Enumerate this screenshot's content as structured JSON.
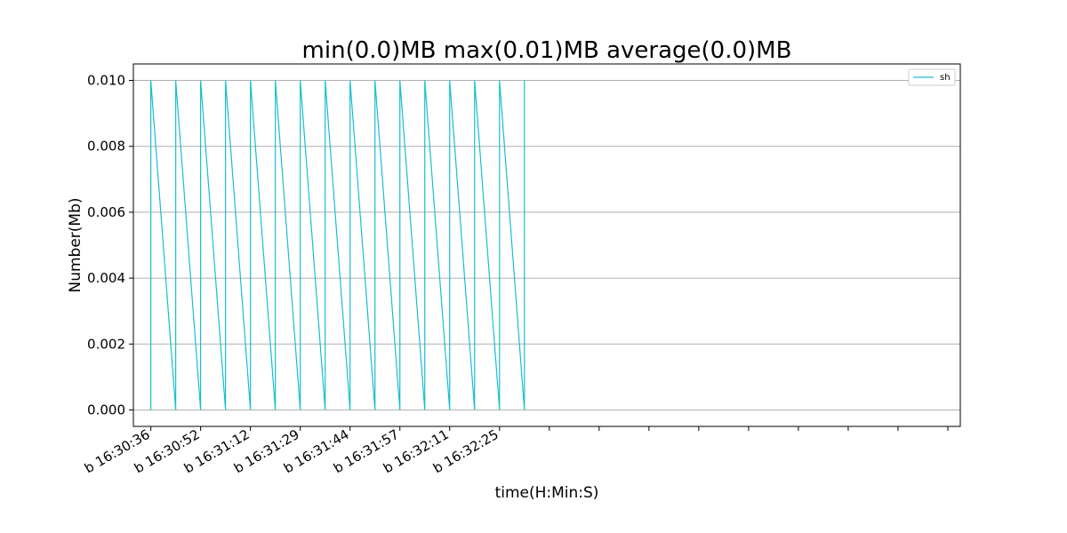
{
  "chart_data": {
    "type": "line",
    "title": "min(0.0)MB max(0.01)MB average(0.0)MB",
    "xlabel": "time(H:Min:S)",
    "ylabel": "Number(Mb)",
    "x_tick_labels": [
      "b 16:30:36",
      "b 16:30:52",
      "b 16:31:12",
      "b 16:31:29",
      "b 16:31:44",
      "b 16:31:57",
      "b 16:32:11",
      "b 16:32:25"
    ],
    "x_tick_count": 17,
    "y_ticks": [
      0.0,
      0.002,
      0.004,
      0.006,
      0.008,
      0.01
    ],
    "y_tick_labels": [
      "0.000",
      "0.002",
      "0.004",
      "0.006",
      "0.008",
      "0.010"
    ],
    "ylim": [
      -0.0005,
      0.0105
    ],
    "xlim": [
      -0.35,
      16.25
    ],
    "grid": "y",
    "legend_position": "top-right",
    "series": [
      {
        "name": "sh",
        "color": "#17becf",
        "x": [
          0,
          0,
          0.5,
          0.5,
          1,
          1,
          1.5,
          1.5,
          2,
          2,
          2.5,
          2.5,
          3,
          3,
          3.5,
          3.5,
          4,
          4,
          4.5,
          4.5,
          5,
          5,
          5.5,
          5.5,
          6,
          6,
          6.5,
          6.5,
          7,
          7,
          7.5,
          7.5
        ],
        "y": [
          0,
          0.01,
          0,
          0.01,
          0,
          0.01,
          0,
          0.01,
          0,
          0.01,
          0,
          0.01,
          0,
          0.01,
          0,
          0.01,
          0,
          0.01,
          0,
          0.01,
          0,
          0.01,
          0,
          0.01,
          0,
          0.01,
          0,
          0.01,
          0,
          0.01,
          0,
          0.01
        ]
      }
    ]
  }
}
